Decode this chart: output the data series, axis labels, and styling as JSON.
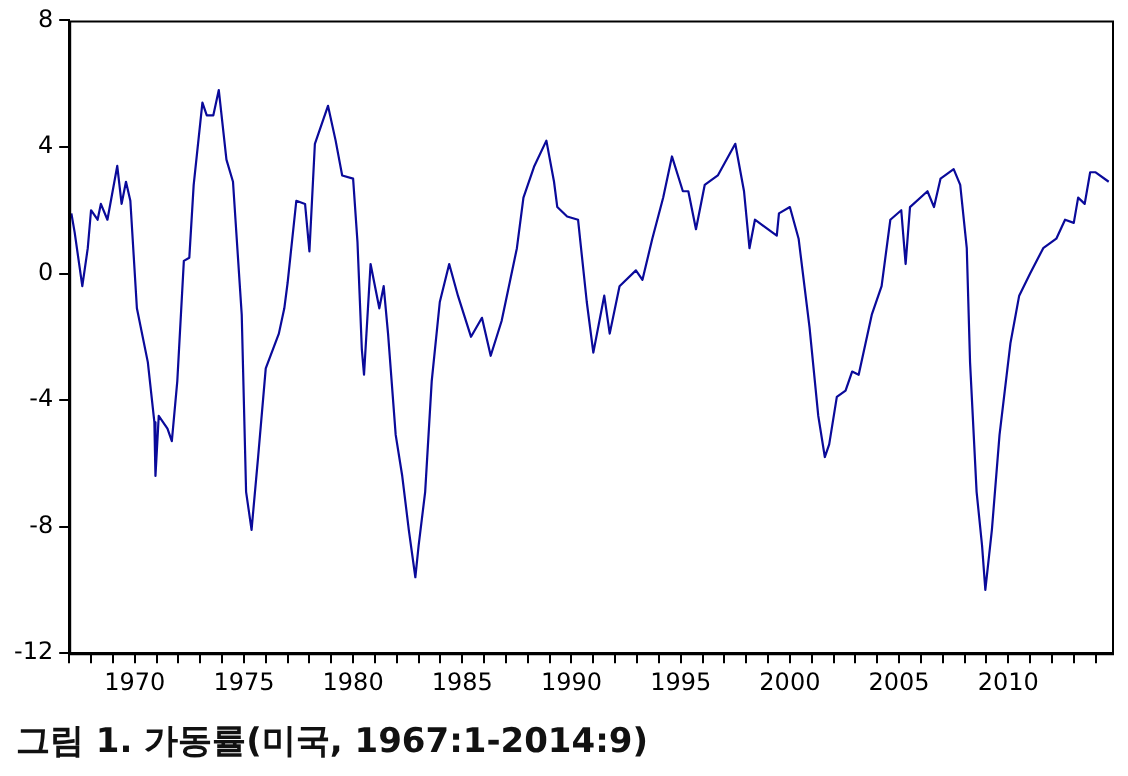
{
  "chart_data": {
    "type": "line",
    "title": "그림 1. 가동률(미국, 1967:1-2014:9)",
    "x": [
      1967.1,
      1967.25,
      1967.6,
      1967.85,
      1968.0,
      1968.3,
      1968.45,
      1968.75,
      1969.2,
      1969.4,
      1969.6,
      1969.8,
      1970.1,
      1970.6,
      1970.9,
      1970.95,
      1971.1,
      1971.5,
      1971.7,
      1971.95,
      1972.25,
      1972.5,
      1972.7,
      1973.1,
      1973.3,
      1973.6,
      1973.85,
      1974.2,
      1974.5,
      1974.9,
      1975.1,
      1975.35,
      1975.65,
      1976.0,
      1976.6,
      1976.85,
      1977.0,
      1977.4,
      1977.8,
      1978.0,
      1978.25,
      1978.85,
      1979.2,
      1979.5,
      1980.0,
      1980.2,
      1980.4,
      1980.5,
      1980.8,
      1981.2,
      1981.4,
      1981.6,
      1981.95,
      1982.25,
      1982.55,
      1982.85,
      1983.0,
      1983.3,
      1983.6,
      1983.97,
      1984.4,
      1984.8,
      1985.4,
      1985.9,
      1986.3,
      1986.8,
      1987.5,
      1987.8,
      1988.3,
      1988.85,
      1989.2,
      1989.35,
      1989.8,
      1990.3,
      1990.7,
      1991.0,
      1991.5,
      1991.75,
      1992.2,
      1992.95,
      1993.25,
      1993.7,
      1994.2,
      1994.6,
      1995.1,
      1995.35,
      1995.7,
      1996.1,
      1996.7,
      1997.5,
      1997.9,
      1998.15,
      1998.4,
      1999.4,
      1999.5,
      2000.0,
      2000.4,
      2000.9,
      2001.3,
      2001.6,
      2001.8,
      2002.15,
      2002.55,
      2002.85,
      2003.15,
      2003.75,
      2004.2,
      2004.6,
      2005.1,
      2005.3,
      2005.5,
      2006.3,
      2006.6,
      2006.9,
      2007.5,
      2007.8,
      2008.1,
      2008.25,
      2008.55,
      2008.8,
      2008.95,
      2009.25,
      2009.6,
      2010.1,
      2010.5,
      2011.0,
      2011.6,
      2012.2,
      2012.6,
      2013.0,
      2013.2,
      2013.5,
      2013.75,
      2014.0,
      2014.6
    ],
    "series": [
      {
        "color": "#0a0a9a",
        "values": [
          1.9,
          1.3,
          -0.4,
          0.8,
          2.0,
          1.7,
          2.2,
          1.7,
          3.4,
          2.2,
          2.9,
          2.3,
          -1.1,
          -2.8,
          -4.7,
          -6.4,
          -4.5,
          -4.9,
          -5.3,
          -3.4,
          0.4,
          0.5,
          2.8,
          5.4,
          5.0,
          5.0,
          5.8,
          3.6,
          2.9,
          -1.3,
          -6.9,
          -8.1,
          -5.8,
          -3.0,
          -1.9,
          -1.1,
          -0.3,
          2.3,
          2.2,
          0.7,
          4.1,
          5.3,
          4.2,
          3.1,
          3.0,
          1.0,
          -2.4,
          -3.2,
          0.3,
          -1.1,
          -0.4,
          -1.9,
          -5.1,
          -6.4,
          -8.1,
          -9.6,
          -8.6,
          -6.9,
          -3.4,
          -0.9,
          0.3,
          -0.7,
          -2.0,
          -1.4,
          -2.6,
          -1.5,
          0.8,
          2.4,
          3.4,
          4.2,
          2.9,
          2.1,
          1.8,
          1.7,
          -0.9,
          -2.5,
          -0.7,
          -1.9,
          -0.4,
          0.1,
          -0.2,
          1.1,
          2.4,
          3.7,
          2.6,
          2.6,
          1.4,
          2.8,
          3.1,
          4.1,
          2.6,
          0.8,
          1.7,
          1.2,
          1.9,
          2.1,
          1.1,
          -1.7,
          -4.5,
          -5.8,
          -5.4,
          -3.9,
          -3.7,
          -3.1,
          -3.2,
          -1.3,
          -0.4,
          1.7,
          2.0,
          0.3,
          2.1,
          2.6,
          2.1,
          3.0,
          3.3,
          2.8,
          0.8,
          -2.8,
          -6.9,
          -8.6,
          -10.0,
          -8.1,
          -5.1,
          -2.2,
          -0.7,
          0.0,
          0.8,
          1.1,
          1.7,
          1.6,
          2.4,
          2.2,
          3.2,
          3.2,
          2.9
        ]
      }
    ],
    "xlim": [
      1967,
      2014.75
    ],
    "xticks": [
      {
        "value": 1967,
        "label": null
      },
      {
        "value": 1968,
        "label": null
      },
      {
        "value": 1969,
        "label": null
      },
      1970,
      {
        "value": 1971,
        "label": null
      },
      {
        "value": 1972,
        "label": null
      },
      {
        "value": 1973,
        "label": null
      },
      {
        "value": 1974,
        "label": null
      },
      1975,
      {
        "value": 1976,
        "label": null
      },
      {
        "value": 1977,
        "label": null
      },
      {
        "value": 1978,
        "label": null
      },
      {
        "value": 1979,
        "label": null
      },
      1980,
      {
        "value": 1981,
        "label": null
      },
      {
        "value": 1982,
        "label": null
      },
      {
        "value": 1983,
        "label": null
      },
      {
        "value": 1984,
        "label": null
      },
      1985,
      {
        "value": 1986,
        "label": null
      },
      {
        "value": 1987,
        "label": null
      },
      {
        "value": 1988,
        "label": null
      },
      {
        "value": 1989,
        "label": null
      },
      1990,
      {
        "value": 1991,
        "label": null
      },
      {
        "value": 1992,
        "label": null
      },
      {
        "value": 1993,
        "label": null
      },
      {
        "value": 1994,
        "label": null
      },
      1995,
      {
        "value": 1996,
        "label": null
      },
      {
        "value": 1997,
        "label": null
      },
      {
        "value": 1998,
        "label": null
      },
      {
        "value": 1999,
        "label": null
      },
      2000,
      {
        "value": 2001,
        "label": null
      },
      {
        "value": 2002,
        "label": null
      },
      {
        "value": 2003,
        "label": null
      },
      {
        "value": 2004,
        "label": null
      },
      2005,
      {
        "value": 2006,
        "label": null
      },
      {
        "value": 2007,
        "label": null
      },
      {
        "value": 2008,
        "label": null
      },
      {
        "value": 2009,
        "label": null
      },
      2010,
      {
        "value": 2011,
        "label": null
      },
      {
        "value": 2012,
        "label": null
      },
      {
        "value": 2013,
        "label": null
      },
      {
        "value": 2014,
        "label": null
      }
    ],
    "ylim": [
      -12,
      8
    ],
    "yticks": [
      -12,
      -8,
      -4,
      0,
      4,
      8
    ],
    "grid": false,
    "legend": false,
    "marker": "none",
    "line_style": "solid"
  }
}
